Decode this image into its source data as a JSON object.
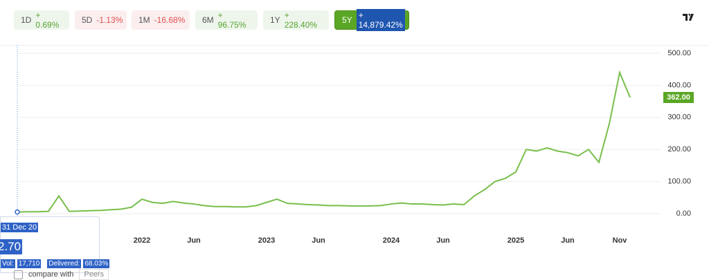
{
  "periods": [
    {
      "label": "1D",
      "change": "+ 0.69%"
    },
    {
      "label": "5D",
      "change": "-1.13%"
    },
    {
      "label": "1M",
      "change": "-16.68%"
    },
    {
      "label": "6M",
      "change": "+ 96.75%"
    },
    {
      "label": "1Y",
      "change": "+ 228.40%"
    },
    {
      "label": "5Y",
      "change": "+ 14,879.42%"
    }
  ],
  "chart_data": {
    "type": "line",
    "color": "#78be4a",
    "categories": [
      null,
      null,
      null,
      null,
      null,
      null,
      null,
      null,
      null,
      null,
      null,
      null,
      "2022",
      null,
      null,
      null,
      null,
      "Jun",
      null,
      null,
      null,
      null,
      null,
      null,
      "2023",
      null,
      null,
      null,
      null,
      "Jun",
      null,
      null,
      null,
      null,
      null,
      null,
      "2024",
      null,
      null,
      null,
      null,
      "Jun",
      null,
      null,
      null,
      null,
      null,
      null,
      "2025",
      null,
      null,
      null,
      null,
      "Jun",
      null,
      null,
      null,
      null,
      "Nov",
      null
    ],
    "values": [
      5,
      6,
      6,
      7,
      55,
      7,
      8,
      9,
      10,
      12,
      14,
      20,
      45,
      35,
      32,
      38,
      33,
      30,
      25,
      22,
      22,
      21,
      21,
      25,
      35,
      45,
      32,
      30,
      28,
      27,
      25,
      25,
      24,
      24,
      24,
      25,
      30,
      33,
      30,
      30,
      28,
      27,
      30,
      28,
      55,
      75,
      100,
      110,
      130,
      200,
      195,
      205,
      195,
      190,
      180,
      200,
      160,
      280,
      440,
      362
    ],
    "ylim": [
      -55,
      520
    ],
    "yticks": [
      {
        "value": 0,
        "label": "0.00"
      },
      {
        "value": 100,
        "label": "100.00"
      },
      {
        "value": 200,
        "label": "200.00"
      },
      {
        "value": 300,
        "label": "300.00"
      },
      {
        "value": 400,
        "label": "400.00"
      },
      {
        "value": 500,
        "label": "500.00"
      }
    ],
    "grid": true,
    "last_label": {
      "value": 362,
      "label": "362.00"
    }
  },
  "tooltip": {
    "date": "31 Dec 20",
    "price": "2.70",
    "vol_label": "Vol:",
    "vol": "17,710",
    "delivered_label": "Delivered:",
    "delivered": "68.03%"
  },
  "compare": {
    "label": "compare with",
    "select": "Peers"
  }
}
